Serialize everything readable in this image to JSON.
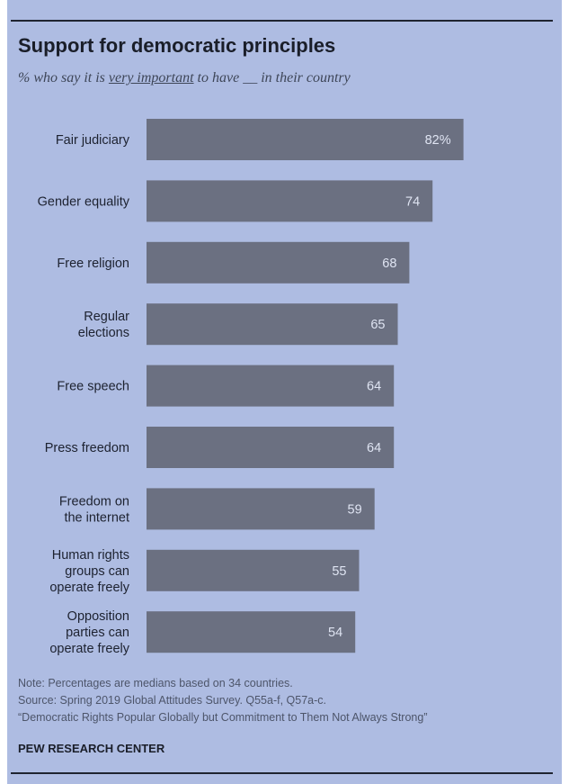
{
  "title": "Support for democratic principles",
  "subtitle": {
    "before": "% who say it is ",
    "emphasis": "very important",
    "after": " to have __ in their country"
  },
  "chart_data": {
    "type": "bar",
    "orientation": "horizontal",
    "categories": [
      "Fair judiciary",
      "Gender equality",
      "Free religion",
      "Regular elections",
      "Free speech",
      "Press freedom",
      "Freedom on the internet",
      "Human rights groups can operate freely",
      "Opposition parties can operate freely"
    ],
    "category_lines": [
      [
        "Fair judiciary"
      ],
      [
        "Gender equality"
      ],
      [
        "Free religion"
      ],
      [
        "Regular",
        "elections"
      ],
      [
        "Free speech"
      ],
      [
        "Press freedom"
      ],
      [
        "Freedom on",
        "the internet"
      ],
      [
        "Human rights",
        "groups can",
        "operate freely"
      ],
      [
        "Opposition",
        "parties can",
        "operate freely"
      ]
    ],
    "values": [
      82,
      74,
      68,
      65,
      64,
      64,
      59,
      55,
      54
    ],
    "value_labels": [
      "82%",
      "74",
      "68",
      "65",
      "64",
      "64",
      "59",
      "55",
      "54"
    ],
    "xlim": [
      0,
      100
    ],
    "grid": false,
    "bar_color": "#6b7081"
  },
  "notes": [
    "Note: Percentages are medians based on 34 countries.",
    "Source: Spring 2019 Global Attitudes Survey. Q55a-f, Q57a-c.",
    "“Democratic Rights Popular Globally but Commitment to Them Not Always Strong”"
  ],
  "brand": "PEW RESEARCH CENTER",
  "colors": {
    "background": "#aebce2",
    "bar": "#6b7081",
    "value_text": "#dfe4f2",
    "title_text": "#1a1e29"
  }
}
